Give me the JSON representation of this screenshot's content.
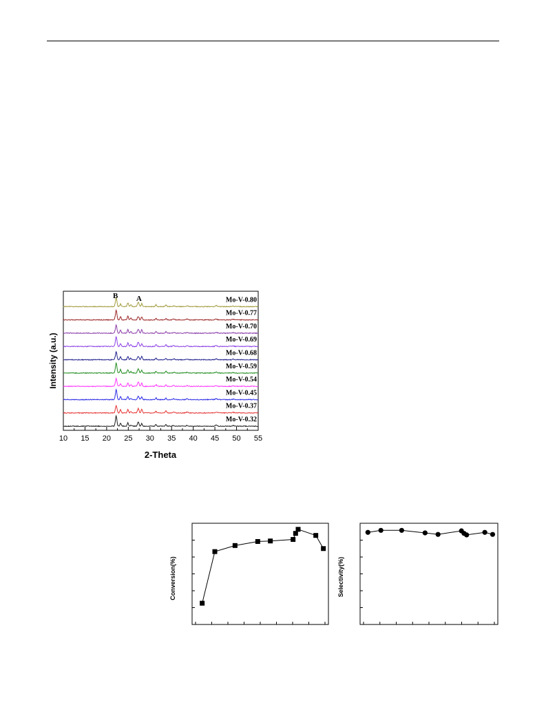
{
  "chart_data": [
    {
      "type": "line",
      "xlabel": "2-Theta",
      "ylabel": "Intensity (a.u.)",
      "xlim": [
        10,
        55
      ],
      "xticks": [
        10,
        15,
        20,
        25,
        30,
        35,
        40,
        45,
        50,
        55
      ],
      "peak_markers": [
        {
          "label": "B",
          "x": 22.2
        },
        {
          "label": "A",
          "x": 27.3
        }
      ],
      "series": [
        {
          "name": "Mo-V-0.80",
          "color": "#a09a3a"
        },
        {
          "name": "Mo-V-0.77",
          "color": "#9b2424"
        },
        {
          "name": "Mo-V-0.70",
          "color": "#8a3aa8"
        },
        {
          "name": "Mo-V-0.69",
          "color": "#8b3ee6"
        },
        {
          "name": "Mo-V-0.68",
          "color": "#1e1e8c"
        },
        {
          "name": "Mo-V-0.59",
          "color": "#1e8c1e"
        },
        {
          "name": "Mo-V-0.54",
          "color": "#ff33ff"
        },
        {
          "name": "Mo-V-0.45",
          "color": "#2828e6"
        },
        {
          "name": "Mo-V-0.37",
          "color": "#e63232"
        },
        {
          "name": "Mo-V-0.32",
          "color": "#1a1a1a"
        }
      ]
    },
    {
      "type": "line",
      "ylabel": "Conversion(%)",
      "marker": "square",
      "points": [
        {
          "x": 0.32,
          "y": 21
        },
        {
          "x": 0.37,
          "y": 72
        },
        {
          "x": 0.45,
          "y": 78
        },
        {
          "x": 0.54,
          "y": 82
        },
        {
          "x": 0.59,
          "y": 82.5
        },
        {
          "x": 0.68,
          "y": 84
        },
        {
          "x": 0.69,
          "y": 90
        },
        {
          "x": 0.7,
          "y": 94
        },
        {
          "x": 0.77,
          "y": 88
        },
        {
          "x": 0.8,
          "y": 75
        }
      ]
    },
    {
      "type": "line",
      "ylabel": "Selectivity(%)",
      "marker": "circle",
      "points": [
        {
          "x": 0.32,
          "y": 91
        },
        {
          "x": 0.37,
          "y": 93
        },
        {
          "x": 0.45,
          "y": 93
        },
        {
          "x": 0.54,
          "y": 90.5
        },
        {
          "x": 0.59,
          "y": 89
        },
        {
          "x": 0.68,
          "y": 92.5
        },
        {
          "x": 0.69,
          "y": 90
        },
        {
          "x": 0.7,
          "y": 88.5
        },
        {
          "x": 0.77,
          "y": 91
        },
        {
          "x": 0.8,
          "y": 89
        }
      ]
    }
  ]
}
